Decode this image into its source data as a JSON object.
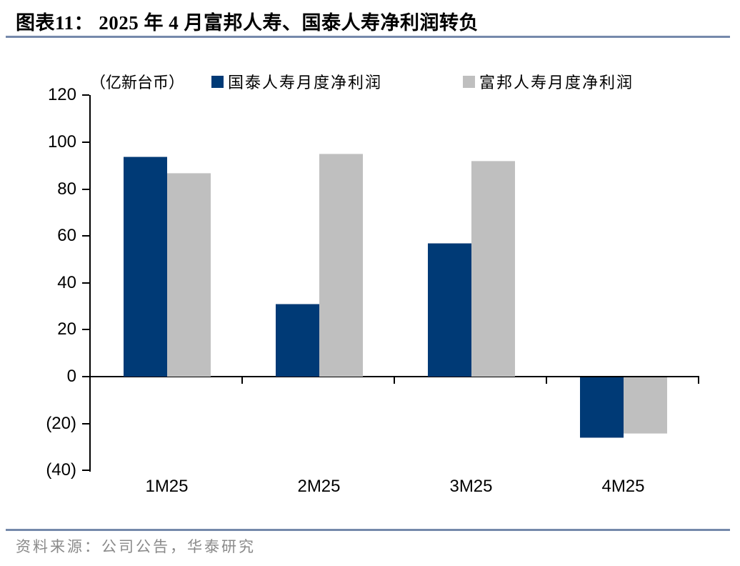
{
  "header": {
    "title": "图表11： 2025 年 4 月富邦人寿、国泰人寿净利润转负"
  },
  "chart_data": {
    "type": "bar",
    "unit_label": "（亿新台币）",
    "categories": [
      "1M25",
      "2M25",
      "3M25",
      "4M25"
    ],
    "series": [
      {
        "name": "国泰人寿月度净利润",
        "color": "#003a76",
        "border": "#8fa3bd",
        "values": [
          94,
          31,
          57,
          -26
        ]
      },
      {
        "name": "富邦人寿月度净利润",
        "color": "#bfbfbf",
        "border": "#d9d9d9",
        "values": [
          87,
          95,
          92,
          -24
        ]
      }
    ],
    "ylim": [
      -40,
      120
    ],
    "ytick_step": 20,
    "ytick_labels": [
      "(40)",
      "(20)",
      "0",
      "20",
      "40",
      "60",
      "80",
      "100",
      "120"
    ],
    "legend_position": "top",
    "grid": false
  },
  "footer": {
    "source": "资料来源：公司公告，华泰研究"
  },
  "colors": {
    "rule_blue": "#7589ab",
    "cathay_blue": "#003a76",
    "fubon_gray": "#bfbfbf",
    "source_gray": "#8a8a8a",
    "axis_black": "#000000"
  }
}
